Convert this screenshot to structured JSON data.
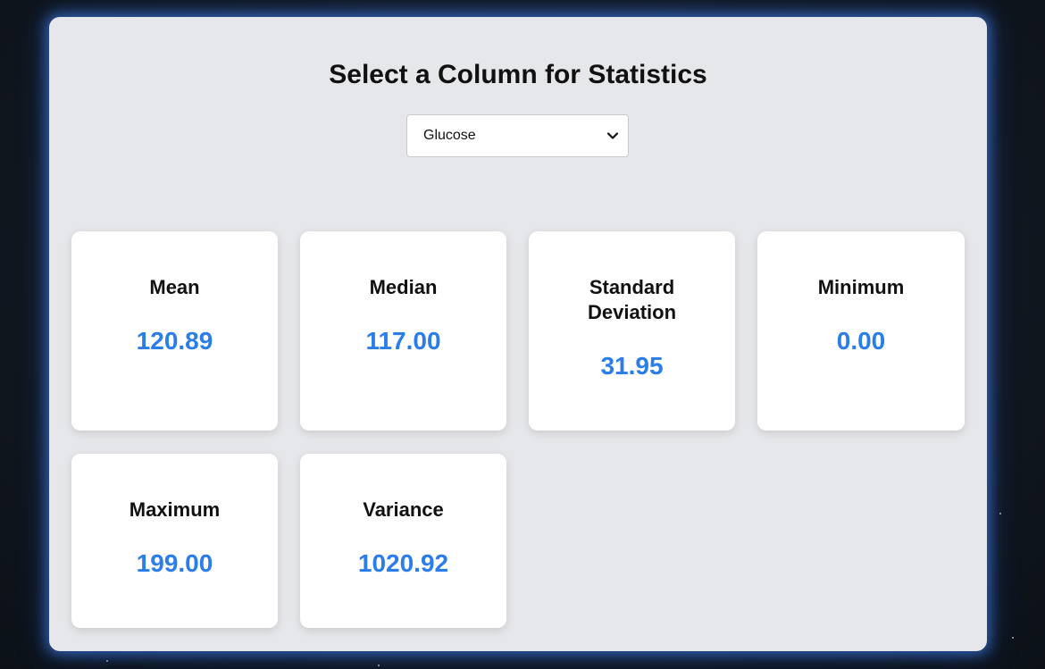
{
  "page": {
    "title": "Select a Column for Statistics"
  },
  "column_select": {
    "selected": "Glucose"
  },
  "stats": [
    {
      "label": "Mean",
      "value": "120.89"
    },
    {
      "label": "Median",
      "value": "117.00"
    },
    {
      "label": "Standard Deviation",
      "value": "31.95"
    },
    {
      "label": "Minimum",
      "value": "0.00"
    },
    {
      "label": "Maximum",
      "value": "199.00"
    },
    {
      "label": "Variance",
      "value": "1020.92"
    }
  ],
  "colors": {
    "accent": "#2b7de9",
    "panel_bg": "#e6e7ea",
    "glow": "#468cff"
  }
}
